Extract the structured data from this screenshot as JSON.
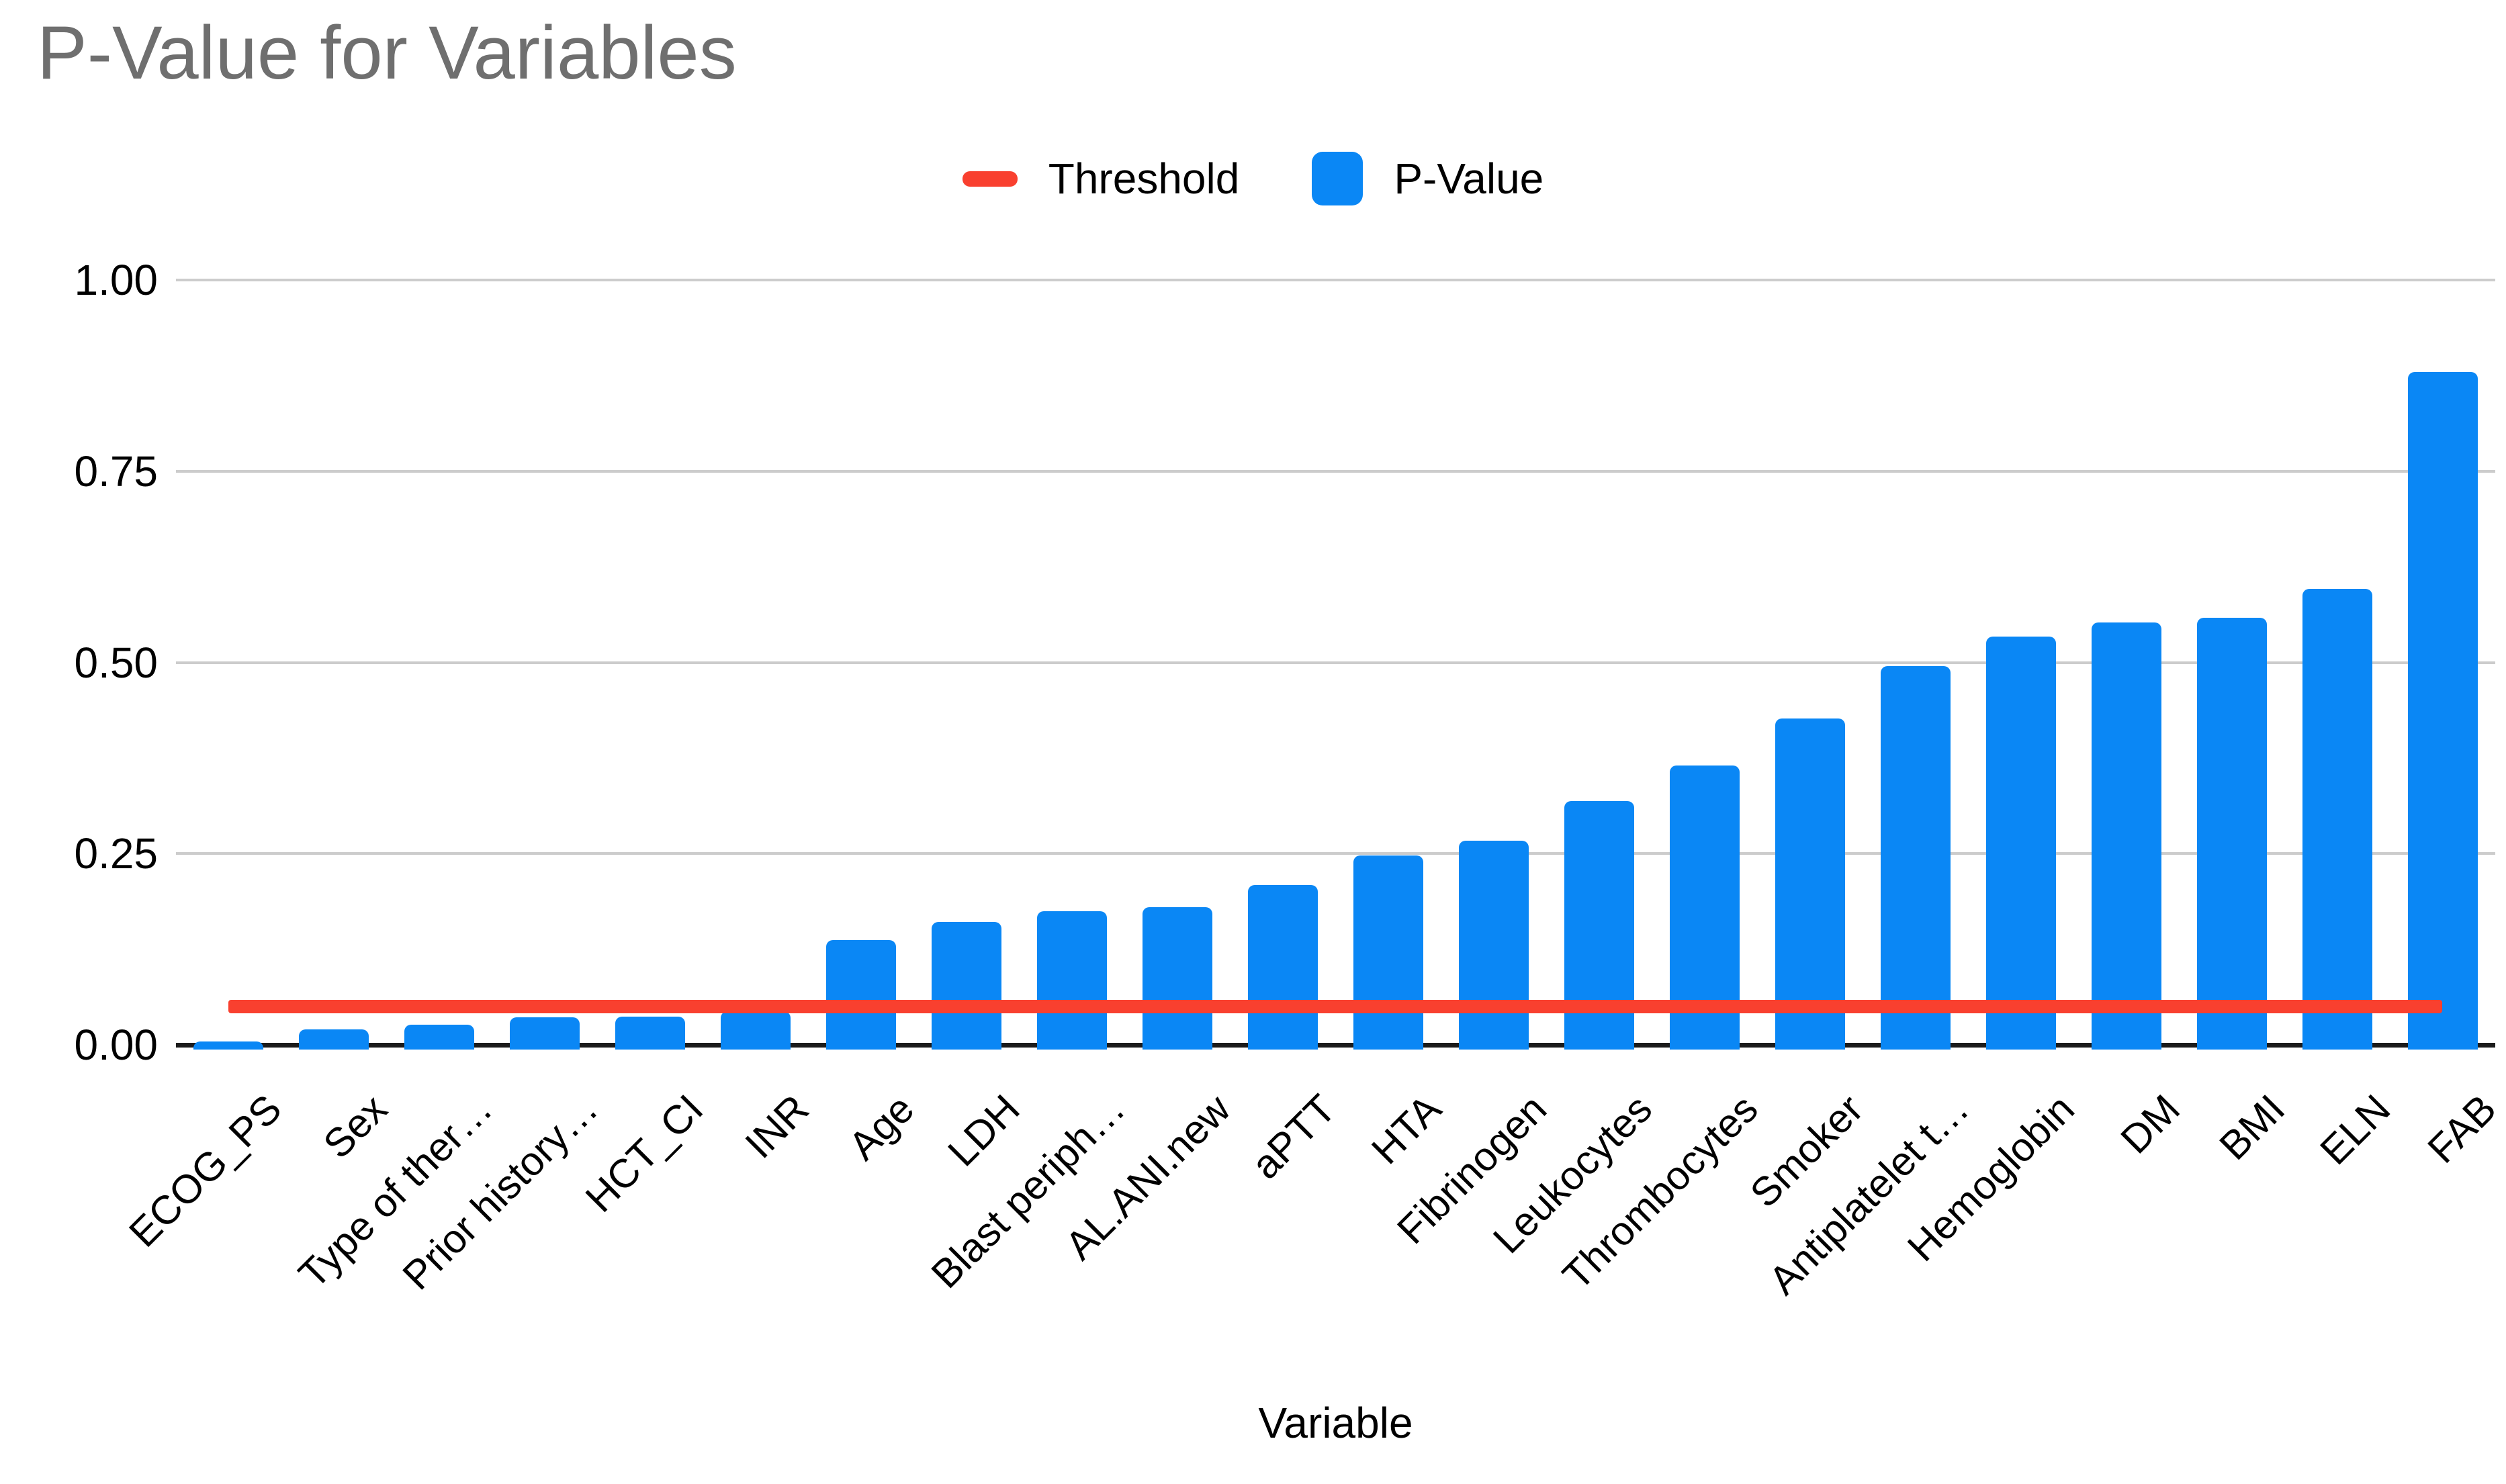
{
  "title": "P-Value for Variables",
  "legend": [
    {
      "label": "Threshold",
      "type": "line",
      "color": "#f9402f"
    },
    {
      "label": "P-Value",
      "type": "bar",
      "color": "#0a87f5"
    }
  ],
  "colors": {
    "bar": "#0a87f5",
    "threshold": "#f9402f",
    "gridline": "#cccccc",
    "axis_line": "#1b1b1b",
    "title_text": "#6f6f6f",
    "tick_text": "#000000"
  },
  "chart_data": {
    "type": "bar",
    "title": "P-Value for Variables",
    "xlabel": "Variable",
    "ylabel": "",
    "ylim": [
      0,
      1.0
    ],
    "yticks": [
      0,
      0.25,
      0.5,
      0.75,
      1.0
    ],
    "ytick_labels": [
      "0.00",
      "0.25",
      "0.50",
      "0.75",
      "1.00"
    ],
    "grid": true,
    "legend_position": "top-center",
    "categories": [
      "ECOG_PS",
      "Sex",
      "Type of ther…",
      "Prior history…",
      "HCT_CI",
      "INR",
      "Age",
      "LDH",
      "Blast periph…",
      "AL.ANI.new",
      "aPTT",
      "HTA",
      "Fibrinogen",
      "Leukocytes",
      "Thrombocytes",
      "Smoker",
      "Antiplatelet t…",
      "Hemoglobin",
      "DM",
      "BMI",
      "ELN",
      "FAB"
    ],
    "series": [
      {
        "name": "P-Value",
        "values": [
          0.004,
          0.02,
          0.026,
          0.036,
          0.037,
          0.044,
          0.137,
          0.161,
          0.175,
          0.18,
          0.209,
          0.248,
          0.267,
          0.319,
          0.365,
          0.427,
          0.495,
          0.534,
          0.552,
          0.558,
          0.596,
          0.88
        ]
      },
      {
        "name": "Threshold",
        "threshold_value": 0.05
      }
    ]
  }
}
